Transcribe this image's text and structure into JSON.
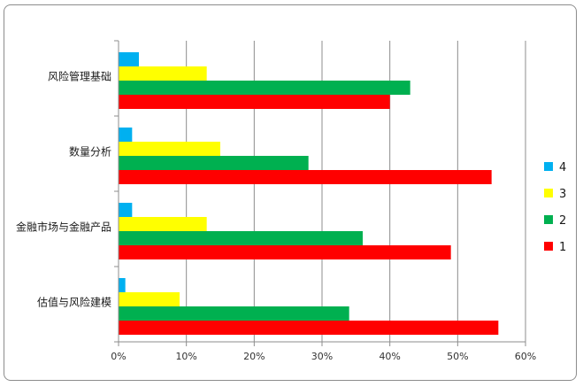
{
  "chart_data": {
    "type": "bar",
    "orientation": "horizontal",
    "categories": [
      "风险管理基础",
      "数量分析",
      "金融市场与金融产品",
      "估值与风险建模"
    ],
    "series": [
      {
        "name": "4",
        "color": "#00b0f0",
        "values": [
          0.03,
          0.02,
          0.02,
          0.01
        ]
      },
      {
        "name": "3",
        "color": "#ffff00",
        "values": [
          0.13,
          0.15,
          0.13,
          0.09
        ]
      },
      {
        "name": "2",
        "color": "#00b050",
        "values": [
          0.43,
          0.28,
          0.36,
          0.34
        ]
      },
      {
        "name": "1",
        "color": "#ff0000",
        "values": [
          0.4,
          0.55,
          0.49,
          0.56
        ]
      }
    ],
    "xticks": [
      "0%",
      "10%",
      "20%",
      "30%",
      "40%",
      "50%",
      "60%"
    ],
    "xlim": [
      0,
      0.6
    ],
    "title": "",
    "xlabel": "",
    "ylabel": "",
    "grid": "vertical",
    "legend_position": "right"
  }
}
